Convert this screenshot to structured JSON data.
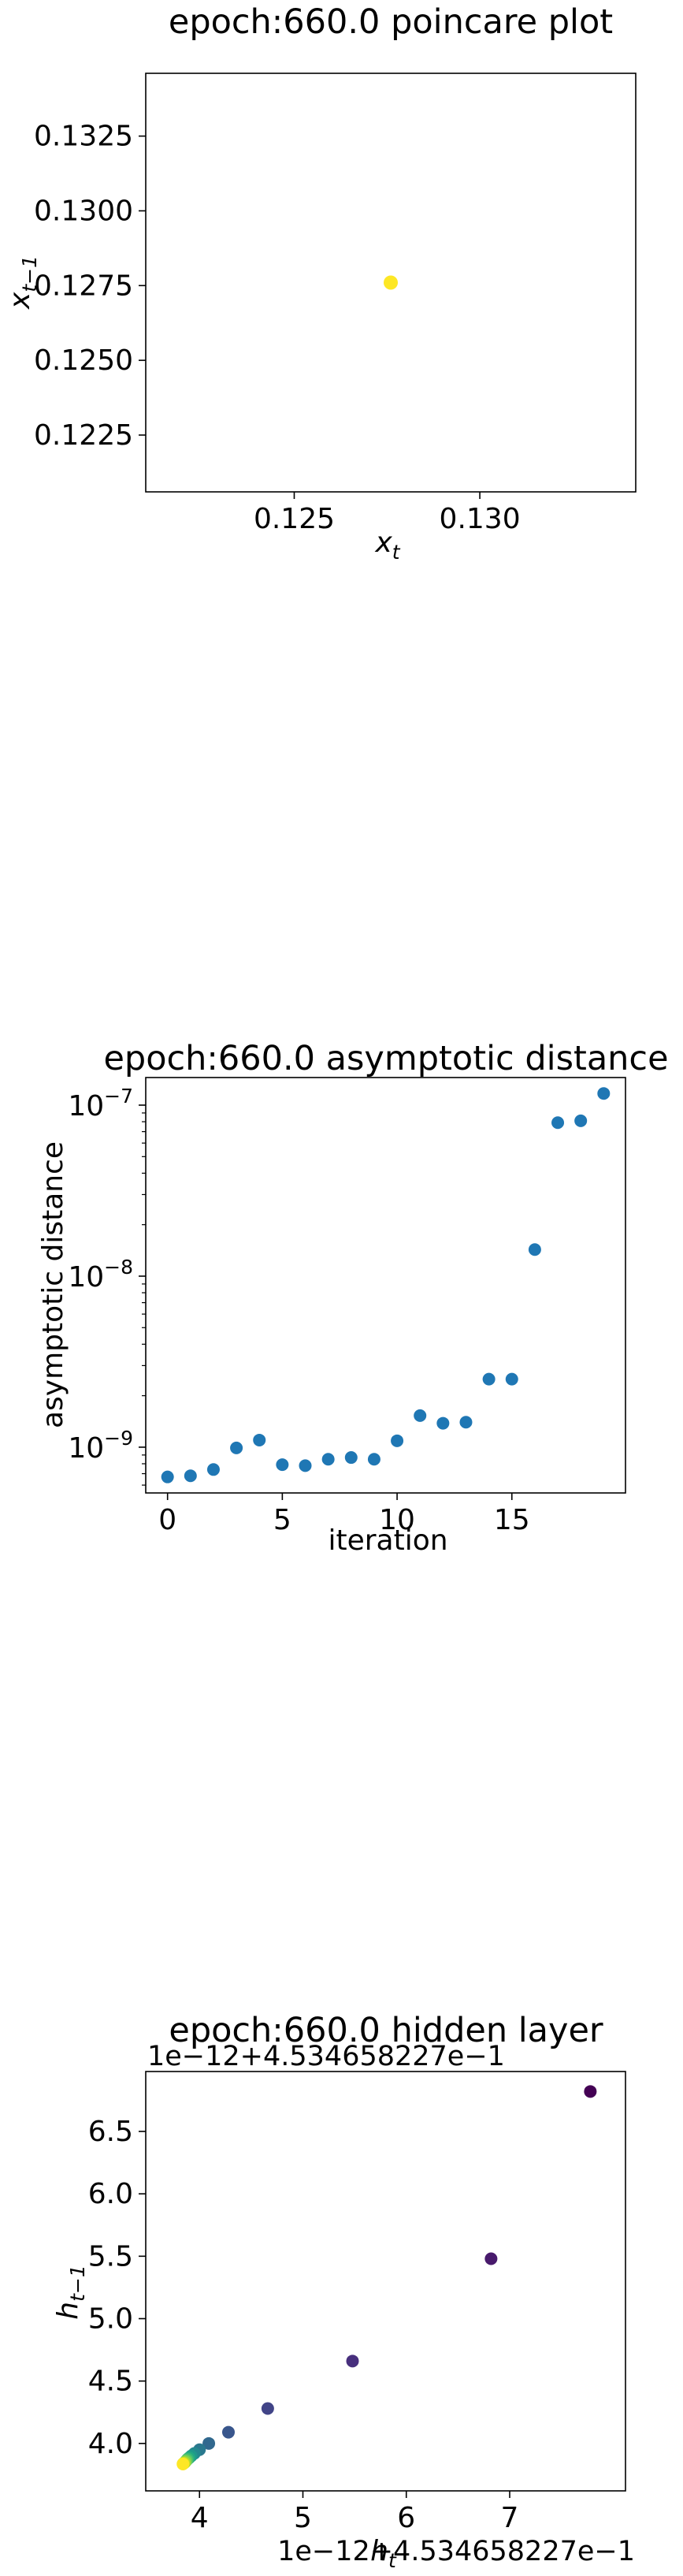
{
  "chart_data": [
    {
      "type": "scatter",
      "title": "epoch:660.0 poincare plot",
      "xlabel": "x",
      "xlabel_sub": "t",
      "ylabel": "x",
      "ylabel_sub": "t−1",
      "xlim": [
        0.121,
        0.1342
      ],
      "ylim": [
        0.1206,
        0.1346
      ],
      "xticks": [
        {
          "value": 0.125,
          "label": "0.125"
        },
        {
          "value": 0.13,
          "label": "0.130"
        }
      ],
      "yticks": [
        {
          "value": 0.1225,
          "label": "0.1225"
        },
        {
          "value": 0.125,
          "label": "0.1250"
        },
        {
          "value": 0.1275,
          "label": "0.1275"
        },
        {
          "value": 0.13,
          "label": "0.1300"
        },
        {
          "value": 0.1325,
          "label": "0.1325"
        }
      ],
      "points": [
        {
          "x": 0.1276,
          "y": 0.1276,
          "color": "#fde725"
        }
      ]
    },
    {
      "type": "scatter",
      "title": "epoch:660.0 asymptotic distance",
      "xlabel": "iteration",
      "ylabel": "asymptotic distance",
      "yscale": "log",
      "xlim": [
        -0.95,
        19.95
      ],
      "ylim": [
        5.4e-10,
        1.45e-07
      ],
      "xticks": [
        {
          "value": 0,
          "label": "0"
        },
        {
          "value": 5,
          "label": "5"
        },
        {
          "value": 10,
          "label": "10"
        },
        {
          "value": 15,
          "label": "15"
        }
      ],
      "yticks": [
        {
          "value": 1e-09,
          "base": "10",
          "exp": "−9"
        },
        {
          "value": 1e-08,
          "base": "10",
          "exp": "−8"
        },
        {
          "value": 1e-07,
          "base": "10",
          "exp": "−7"
        }
      ],
      "color": "#1f77b4",
      "x": [
        0,
        1,
        2,
        3,
        4,
        5,
        6,
        7,
        8,
        9,
        10,
        11,
        12,
        13,
        14,
        15,
        16,
        17,
        18,
        19
      ],
      "y": [
        6.7e-10,
        6.8e-10,
        7.4e-10,
        9.9e-10,
        1.1e-09,
        7.9e-10,
        7.8e-10,
        8.5e-10,
        8.7e-10,
        8.5e-10,
        1.09e-09,
        1.53e-09,
        1.38e-09,
        1.4e-09,
        2.5e-09,
        2.5e-09,
        1.43e-08,
        7.9e-08,
        8.1e-08,
        1.17e-07
      ]
    },
    {
      "type": "scatter",
      "title": "epoch:660.0 hidden layer",
      "xlabel": "h",
      "xlabel_sub": "t",
      "ylabel": "h",
      "ylabel_sub": "t−1",
      "x_offset_text": "1e−12+4.534658227e−1",
      "y_offset_text": "1e−12+4.534658227e−1",
      "xlim": [
        3.48,
        8.12
      ],
      "ylim": [
        3.62,
        6.98
      ],
      "xticks": [
        {
          "value": 4,
          "label": "4"
        },
        {
          "value": 5,
          "label": "5"
        },
        {
          "value": 6,
          "label": "6"
        },
        {
          "value": 7,
          "label": "7"
        }
      ],
      "yticks": [
        {
          "value": 4.0,
          "label": "4.0"
        },
        {
          "value": 4.5,
          "label": "4.5"
        },
        {
          "value": 5.0,
          "label": "5.0"
        },
        {
          "value": 5.5,
          "label": "5.5"
        },
        {
          "value": 6.0,
          "label": "6.0"
        },
        {
          "value": 6.5,
          "label": "6.5"
        }
      ],
      "points": [
        {
          "x": 7.78,
          "y": 6.82,
          "color": "#440154"
        },
        {
          "x": 6.82,
          "y": 5.48,
          "color": "#481a6c"
        },
        {
          "x": 5.48,
          "y": 4.66,
          "color": "#472f7d"
        },
        {
          "x": 4.66,
          "y": 4.28,
          "color": "#414487"
        },
        {
          "x": 4.28,
          "y": 4.09,
          "color": "#39568c"
        },
        {
          "x": 4.09,
          "y": 4.0,
          "color": "#31688e"
        },
        {
          "x": 4.0,
          "y": 3.95,
          "color": "#2a788e"
        },
        {
          "x": 3.95,
          "y": 3.92,
          "color": "#23888e"
        },
        {
          "x": 3.92,
          "y": 3.9,
          "color": "#1f988b"
        },
        {
          "x": 3.9,
          "y": 3.885,
          "color": "#22a884"
        },
        {
          "x": 3.885,
          "y": 3.875,
          "color": "#35b779"
        },
        {
          "x": 3.875,
          "y": 3.865,
          "color": "#54c568"
        },
        {
          "x": 3.865,
          "y": 3.855,
          "color": "#7ad151"
        },
        {
          "x": 3.855,
          "y": 3.845,
          "color": "#a5db36"
        },
        {
          "x": 3.845,
          "y": 3.84,
          "color": "#d2e21b"
        },
        {
          "x": 3.84,
          "y": 3.835,
          "color": "#fde725"
        }
      ]
    }
  ]
}
